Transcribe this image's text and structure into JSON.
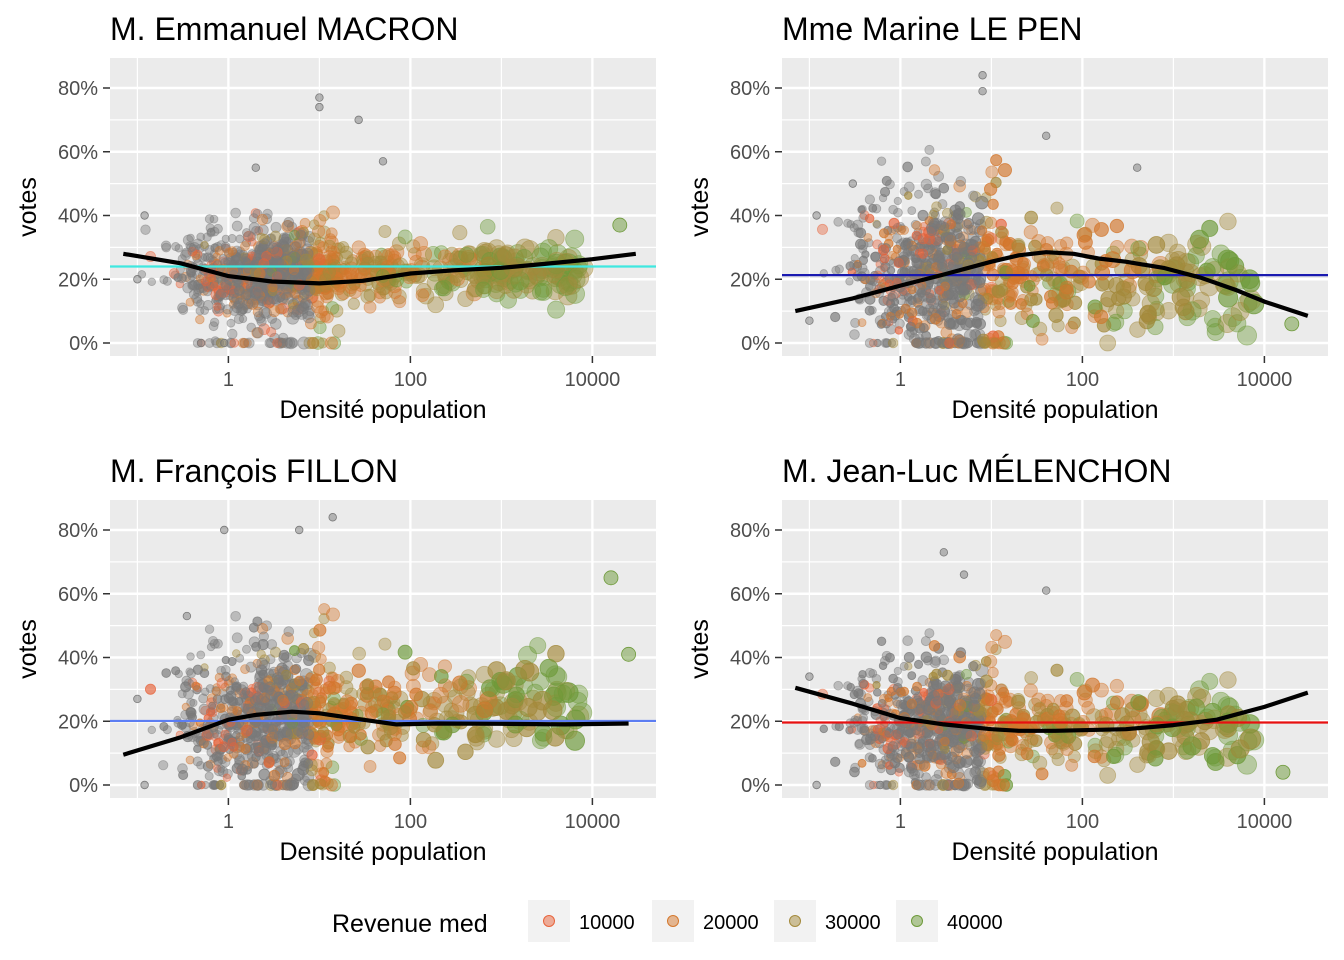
{
  "legend": {
    "title": "Revenue med",
    "placement": "bottom",
    "items": [
      {
        "label": "10000",
        "color": "#E8643C"
      },
      {
        "label": "20000",
        "color": "#D4782E"
      },
      {
        "label": "30000",
        "color": "#A48A3C"
      },
      {
        "label": "40000",
        "color": "#6E9A3A"
      }
    ]
  },
  "colors": {
    "panel_background": "#EBEBEB",
    "grid": "#FFFFFF",
    "low_income_points": "#7A7A7A",
    "smooth_line": "#000000"
  },
  "chart_data": [
    {
      "type": "scatter",
      "title": "M. Emmanuel MACRON",
      "xlabel": "Densité population",
      "ylabel": "votes",
      "x_scale": "log10",
      "xlim": [
        0.05,
        50000
      ],
      "ylim": [
        0,
        90
      ],
      "x_ticks": [
        1,
        100,
        10000
      ],
      "x_tick_labels": [
        "1",
        "100",
        "10000"
      ],
      "y_ticks": [
        0,
        20,
        40,
        60,
        80
      ],
      "y_tick_labels": [
        "0%",
        "20%",
        "40%",
        "60%",
        "80%"
      ],
      "reference_line": {
        "y": 24,
        "color": "#3FE8E0"
      },
      "smooth": {
        "x": [
          0.07,
          0.3,
          1,
          3,
          10,
          30,
          100,
          300,
          1000,
          3000,
          10000,
          30000
        ],
        "y": [
          28,
          25,
          21,
          19.3,
          18.7,
          19.5,
          21.8,
          22.8,
          23.6,
          24.8,
          26.3,
          28
        ]
      },
      "cloud": {
        "center_low": 20,
        "center_high": 23,
        "spread": 5,
        "bias": "higher vote share with higher revenue"
      },
      "point_samples": [
        {
          "x": 0.1,
          "y": 20
        },
        {
          "x": 0.12,
          "y": 40
        },
        {
          "x": 2,
          "y": 55
        },
        {
          "x": 10,
          "y": 77
        },
        {
          "x": 10,
          "y": 74
        },
        {
          "x": 27,
          "y": 70
        },
        {
          "x": 50,
          "y": 57
        },
        {
          "x": 0.5,
          "y": 0
        },
        {
          "x": 0.9,
          "y": 0
        },
        {
          "x": 20000,
          "y": 37
        }
      ]
    },
    {
      "type": "scatter",
      "title": "Mme Marine LE PEN",
      "xlabel": "Densité population",
      "ylabel": "votes",
      "x_scale": "log10",
      "xlim": [
        0.05,
        50000
      ],
      "ylim": [
        0,
        90
      ],
      "x_ticks": [
        1,
        100,
        10000
      ],
      "x_tick_labels": [
        "1",
        "100",
        "10000"
      ],
      "y_ticks": [
        0,
        20,
        40,
        60,
        80
      ],
      "y_tick_labels": [
        "0%",
        "20%",
        "40%",
        "60%",
        "80%"
      ],
      "reference_line": {
        "y": 21.3,
        "color": "#1A1AB0"
      },
      "smooth": {
        "x": [
          0.07,
          0.3,
          1,
          3,
          10,
          20,
          40,
          80,
          150,
          300,
          800,
          2000,
          5000,
          10000,
          30000
        ],
        "y": [
          10,
          14,
          18,
          21.5,
          25.5,
          27.5,
          28.5,
          28,
          26.5,
          25.5,
          23.5,
          20.5,
          16.5,
          13,
          8.5
        ]
      },
      "cloud": {
        "center_low": 26,
        "center_high": 16,
        "spread": 9,
        "bias": "lower vote share with higher revenue"
      },
      "point_samples": [
        {
          "x": 0.1,
          "y": 7
        },
        {
          "x": 0.12,
          "y": 40
        },
        {
          "x": 0.3,
          "y": 50
        },
        {
          "x": 8,
          "y": 84
        },
        {
          "x": 8,
          "y": 79
        },
        {
          "x": 40,
          "y": 65
        },
        {
          "x": 400,
          "y": 55
        },
        {
          "x": 20000,
          "y": 6
        }
      ]
    },
    {
      "type": "scatter",
      "title": "M. François FILLON",
      "xlabel": "Densité population",
      "ylabel": "votes",
      "x_scale": "log10",
      "xlim": [
        0.05,
        50000
      ],
      "ylim": [
        0,
        90
      ],
      "x_ticks": [
        1,
        100,
        10000
      ],
      "x_tick_labels": [
        "1",
        "100",
        "10000"
      ],
      "y_ticks": [
        0,
        20,
        40,
        60,
        80
      ],
      "y_tick_labels": [
        "0%",
        "20%",
        "40%",
        "60%",
        "80%"
      ],
      "reference_line": {
        "y": 20.1,
        "color": "#5C7DF2"
      },
      "smooth": {
        "x": [
          0.07,
          0.3,
          1,
          2,
          5,
          10,
          30,
          70,
          200,
          1000,
          5000,
          25000
        ],
        "y": [
          9.5,
          15,
          20.5,
          22,
          23,
          22.5,
          20.5,
          19,
          19.3,
          19.2,
          19,
          19.3
        ]
      },
      "cloud": {
        "center_low": 18,
        "center_high": 26,
        "spread": 8,
        "bias": "higher vote share with higher revenue"
      },
      "point_samples": [
        {
          "x": 0.1,
          "y": 27
        },
        {
          "x": 0.12,
          "y": 0
        },
        {
          "x": 0.35,
          "y": 53
        },
        {
          "x": 0.9,
          "y": 80
        },
        {
          "x": 6,
          "y": 80
        },
        {
          "x": 14,
          "y": 84
        },
        {
          "x": 16000,
          "y": 65
        },
        {
          "x": 25000,
          "y": 41
        }
      ]
    },
    {
      "type": "scatter",
      "title": "M. Jean-Luc MÉLENCHON",
      "xlabel": "Densité population",
      "ylabel": "votes",
      "x_scale": "log10",
      "xlim": [
        0.05,
        50000
      ],
      "ylim": [
        0,
        90
      ],
      "x_ticks": [
        1,
        100,
        10000
      ],
      "x_tick_labels": [
        "1",
        "100",
        "10000"
      ],
      "y_ticks": [
        0,
        20,
        40,
        60,
        80
      ],
      "y_tick_labels": [
        "0%",
        "20%",
        "40%",
        "60%",
        "80%"
      ],
      "reference_line": {
        "y": 19.6,
        "color": "#E81010"
      },
      "smooth": {
        "x": [
          0.07,
          0.3,
          1,
          3,
          10,
          20,
          50,
          100,
          300,
          1000,
          3000,
          10000,
          30000
        ],
        "y": [
          30.5,
          25.5,
          21,
          19,
          17.5,
          17,
          17,
          17.2,
          17.5,
          18.8,
          20.5,
          24.5,
          29
        ]
      },
      "cloud": {
        "center_low": 20,
        "center_high": 17,
        "spread": 7,
        "bias": "lower vote share with higher revenue"
      },
      "point_samples": [
        {
          "x": 0.1,
          "y": 34
        },
        {
          "x": 0.12,
          "y": 0
        },
        {
          "x": 0.6,
          "y": 0
        },
        {
          "x": 3,
          "y": 73
        },
        {
          "x": 5,
          "y": 66
        },
        {
          "x": 40,
          "y": 61
        },
        {
          "x": 16000,
          "y": 4
        }
      ]
    }
  ]
}
